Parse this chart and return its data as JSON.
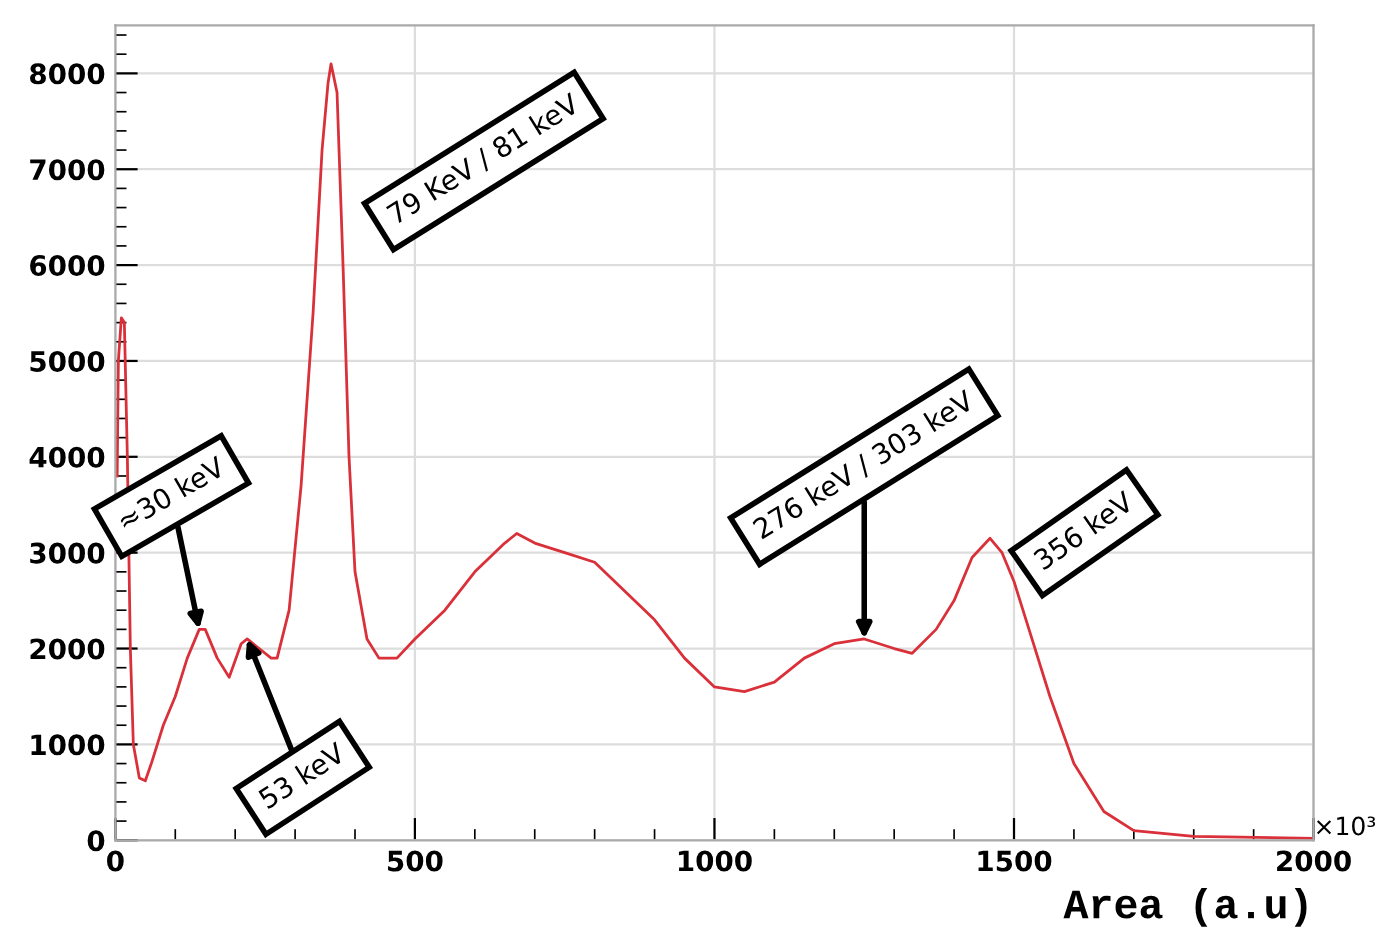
{
  "chart_data": {
    "type": "line",
    "xlabel": "Area (a.u)",
    "x": [
      3,
      5,
      10,
      15,
      20,
      25,
      30,
      40,
      50,
      60,
      80,
      100,
      120,
      140,
      150,
      170,
      190,
      210,
      220,
      240,
      260,
      270,
      290,
      310,
      330,
      345,
      355,
      360,
      370,
      380,
      390,
      400,
      420,
      440,
      470,
      500,
      550,
      600,
      650,
      670,
      700,
      750,
      800,
      850,
      900,
      950,
      1000,
      1050,
      1100,
      1150,
      1200,
      1250,
      1300,
      1330,
      1370,
      1400,
      1430,
      1460,
      1480,
      1500,
      1530,
      1560,
      1600,
      1650,
      1700,
      1800,
      2000
    ],
    "series": [
      {
        "color": "#d9303a",
        "values": [
          3800,
          5000,
          5450,
          5400,
          4000,
          2000,
          1000,
          650,
          620,
          800,
          1200,
          1500,
          1900,
          2200,
          2200,
          1900,
          1700,
          2050,
          2100,
          2000,
          1900,
          1900,
          2400,
          3700,
          5500,
          7200,
          7900,
          8100,
          7800,
          6000,
          4000,
          2800,
          2100,
          1900,
          1900,
          2100,
          2400,
          2800,
          3100,
          3200,
          3100,
          3000,
          2900,
          2600,
          2300,
          1900,
          1600,
          1550,
          1650,
          1900,
          2050,
          2100,
          2000,
          1950,
          2200,
          2500,
          2950,
          3150,
          3000,
          2700,
          2100,
          1500,
          800,
          300,
          100,
          40,
          20
        ]
      }
    ],
    "xlim": [
      0,
      2000
    ],
    "xticks": [
      0,
      500,
      1000,
      1500,
      2000
    ],
    "ylim": [
      0,
      8500
    ],
    "yticks": [
      0,
      1000,
      2000,
      3000,
      4000,
      5000,
      6000,
      7000,
      8000
    ],
    "grid": true,
    "annotations": [
      {
        "text": "≈30 keV",
        "x": 140,
        "y": 2200
      },
      {
        "text": "53 keV",
        "x": 220,
        "y": 2100
      },
      {
        "text": "79 KeV / 81 keV",
        "x": 360,
        "y": 8100
      },
      {
        "text": "276 keV / 303 keV",
        "x": 1250,
        "y": 2100
      },
      {
        "text": "356 keV",
        "x": 1460,
        "y": 3150
      },
      "×10³"
    ]
  }
}
